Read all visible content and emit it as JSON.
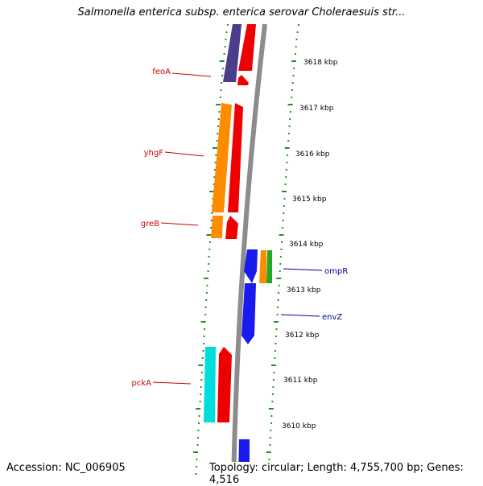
{
  "title": "Salmonella enterica subsp. enterica serovar Choleraesuis str...",
  "footer": {
    "accession": "Accession: NC_006905",
    "topology": "Topology: circular; Length: 4,755,700 bp; Genes: 4,516"
  },
  "scale_unit": "kbp",
  "ticks": [
    "3618 kbp",
    "3617 kbp",
    "3616 kbp",
    "3615 kbp",
    "3614 kbp",
    "3613 kbp",
    "3612 kbp",
    "3611 kbp",
    "3610 kbp"
  ],
  "genes": [
    {
      "name": "feoA",
      "strand": "left",
      "label_color": "#cc0000"
    },
    {
      "name": "yhgF",
      "strand": "left",
      "label_color": "#cc0000"
    },
    {
      "name": "greB",
      "strand": "left",
      "label_color": "#cc0000"
    },
    {
      "name": "ompR",
      "strand": "right",
      "label_color": "#000099"
    },
    {
      "name": "envZ",
      "strand": "right",
      "label_color": "#000099"
    },
    {
      "name": "pckA",
      "strand": "left",
      "label_color": "#cc0000"
    }
  ],
  "colors": {
    "backbone": "#8c8c8c",
    "cds": "#ee0000",
    "gene_left_a": "#ff8c00",
    "gene_left_b": "#00dddd",
    "gene_left_purple": "#4b3c8c",
    "gene_right": "#1a1aee",
    "gene_right_orange": "#ff8c00",
    "gene_right_green": "#22aa22",
    "dots": "#2a8a2a"
  }
}
